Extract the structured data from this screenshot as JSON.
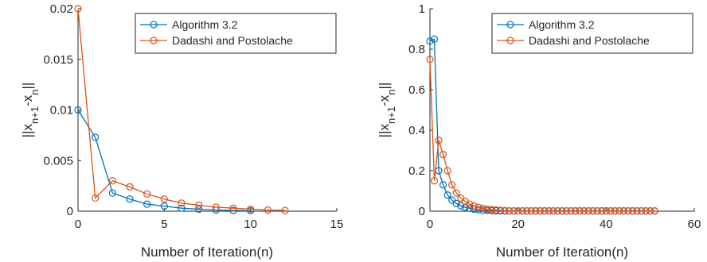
{
  "chart_data": [
    {
      "type": "line",
      "xlabel": "Number of Iteration(n)",
      "ylabel": "||x_{n+1}-x_n||",
      "xlim": [
        0,
        15
      ],
      "ylim": [
        0,
        0.02
      ],
      "xticks": [
        0,
        5,
        10,
        15
      ],
      "xtick_labels": [
        "0",
        "5",
        "10",
        "15"
      ],
      "yticks": [
        0,
        0.005,
        0.01,
        0.015,
        0.02
      ],
      "ytick_labels": [
        "0",
        "0.005",
        "0.01",
        "0.015",
        "0.02"
      ],
      "legend_position": "top-right",
      "grid": false,
      "series": [
        {
          "name": "Algorithm 3.2",
          "color": "#0072BD",
          "x": [
            0,
            1,
            2,
            3,
            4,
            5,
            6,
            7,
            8,
            9,
            10
          ],
          "y": [
            0.01,
            0.0073,
            0.0018,
            0.0012,
            0.0007,
            0.0005,
            0.0003,
            0.0002,
            0.00012,
            8e-05,
            5e-05
          ]
        },
        {
          "name": "Dadashi and Postolache",
          "color": "#D95319",
          "x": [
            0,
            1,
            2,
            3,
            4,
            5,
            6,
            7,
            8,
            9,
            10,
            11,
            12
          ],
          "y": [
            0.02,
            0.0013,
            0.003,
            0.0024,
            0.0017,
            0.0012,
            0.0008,
            0.0006,
            0.0004,
            0.0003,
            0.0002,
            0.00012,
            8e-05
          ]
        }
      ]
    },
    {
      "type": "line",
      "xlabel": "Number of Iteration(n)",
      "ylabel": "||x_{n+1}-x_n||",
      "xlim": [
        0,
        60
      ],
      "ylim": [
        0,
        1
      ],
      "xticks": [
        0,
        20,
        40,
        60
      ],
      "xtick_labels": [
        "0",
        "20",
        "40",
        "60"
      ],
      "yticks": [
        0,
        0.2,
        0.4,
        0.6,
        0.8,
        1
      ],
      "ytick_labels": [
        "0",
        "0.2",
        "0.4",
        "0.6",
        "0.8",
        "1"
      ],
      "legend_position": "top-right",
      "grid": false,
      "series": [
        {
          "name": "Algorithm 3.2",
          "color": "#0072BD",
          "x": [
            0,
            1,
            2,
            3,
            4,
            5,
            6,
            7,
            8,
            9,
            10,
            11,
            12,
            13,
            14,
            15,
            16,
            17,
            18,
            19,
            20,
            21,
            22,
            23,
            24,
            25,
            26,
            27,
            28,
            29,
            30,
            31,
            32,
            33,
            34,
            35,
            36,
            37,
            38,
            39,
            40,
            41,
            42,
            43,
            44,
            45,
            46,
            47,
            48,
            49,
            50,
            51
          ],
          "y": [
            0.84,
            0.85,
            0.2,
            0.13,
            0.08,
            0.055,
            0.038,
            0.027,
            0.019,
            0.014,
            0.01,
            0.007,
            0.005,
            0.004,
            0.003,
            0.002,
            0.0015,
            0.001,
            0.001,
            0.001,
            0.001,
            0.001,
            0.001,
            0.001,
            0.001,
            0.001,
            0.001,
            0.001,
            0.001,
            0.001,
            0.001,
            0.001,
            0.001,
            0.001,
            0.001,
            0.001,
            0.001,
            0.001,
            0.001,
            0.001,
            0.001,
            0.001,
            0.001,
            0.001,
            0.001,
            0.001,
            0.001,
            0.001,
            0.001,
            0.001,
            0.001,
            0.001
          ]
        },
        {
          "name": "Dadashi and Postolache",
          "color": "#D95319",
          "x": [
            0,
            1,
            2,
            3,
            4,
            5,
            6,
            7,
            8,
            9,
            10,
            11,
            12,
            13,
            14,
            15,
            16,
            17,
            18,
            19,
            20,
            21,
            22,
            23,
            24,
            25,
            26,
            27,
            28,
            29,
            30,
            31,
            32,
            33,
            34,
            35,
            36,
            37,
            38,
            39,
            40,
            41,
            42,
            43,
            44,
            45,
            46,
            47,
            48,
            49,
            50,
            51
          ],
          "y": [
            0.75,
            0.15,
            0.35,
            0.28,
            0.2,
            0.13,
            0.09,
            0.065,
            0.048,
            0.035,
            0.026,
            0.019,
            0.014,
            0.01,
            0.008,
            0.006,
            0.004,
            0.003,
            0.002,
            0.002,
            0.002,
            0.002,
            0.002,
            0.002,
            0.002,
            0.002,
            0.002,
            0.002,
            0.002,
            0.002,
            0.002,
            0.002,
            0.002,
            0.002,
            0.002,
            0.002,
            0.002,
            0.002,
            0.002,
            0.002,
            0.002,
            0.002,
            0.002,
            0.002,
            0.002,
            0.002,
            0.002,
            0.002,
            0.002,
            0.002,
            0.002,
            0.002
          ]
        }
      ]
    }
  ]
}
